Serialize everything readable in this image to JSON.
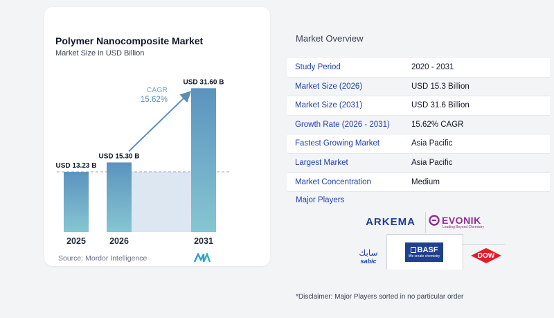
{
  "chart_data": {
    "type": "bar",
    "title": "Polymer Nanocomposite Market",
    "subtitle": "Market Size in USD Billion",
    "categories": [
      "2025",
      "2026",
      "2031"
    ],
    "values": [
      13.23,
      15.3,
      31.6
    ],
    "value_labels": [
      "USD 13.23 B",
      "USD 15.30 B",
      "USD 31.60 B"
    ],
    "cagr_label": "CAGR",
    "cagr_value": "15.62%",
    "ylim": [
      0,
      35
    ],
    "colors": {
      "bar_top": "#5b93be",
      "bar_bottom": "#86c6d2",
      "arrow": "#5b8db5",
      "band": "#dde7f2"
    }
  },
  "source_text": "Source: Mordor Intelligence",
  "overview": {
    "title": "Market Overview",
    "rows": [
      {
        "label": "Study Period",
        "value": "2020 - 2031"
      },
      {
        "label": "Market Size (2026)",
        "value": "USD 15.3 Billion"
      },
      {
        "label": "Market Size (2031)",
        "value": "USD 31.6 Billion"
      },
      {
        "label": "Growth Rate (2026 - 2031)",
        "value": "15.62% CAGR"
      },
      {
        "label": "Fastest Growing Market",
        "value": "Asia Pacific"
      },
      {
        "label": "Largest Market",
        "value": "Asia Pacific"
      },
      {
        "label": "Market Concentration",
        "value": "Medium"
      }
    ]
  },
  "players": {
    "title": "Major Players",
    "arkema": "ARKEMA",
    "evonik": "EVONIK",
    "evonik_tagline": "Leading Beyond Chemistry",
    "sabic_arabic": "سابك",
    "sabic": "sabic",
    "basf": "BASF",
    "basf_tagline": "We create chemistry",
    "dow": "DOW"
  },
  "disclaimer": "*Disclaimer: Major Players sorted in no particular order"
}
